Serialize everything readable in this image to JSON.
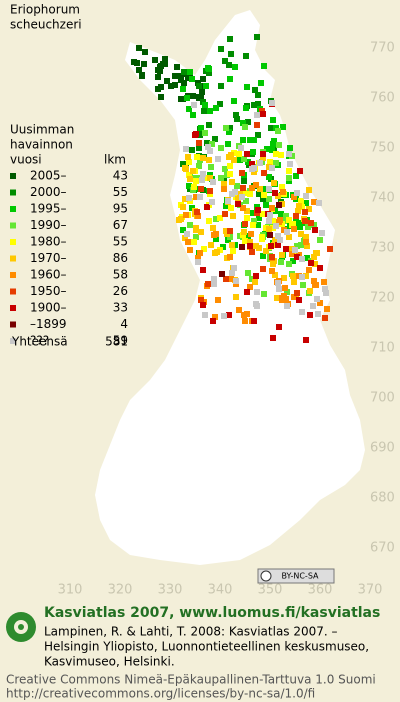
{
  "title": [
    "Eriophorum",
    "scheuchzeri"
  ],
  "legend": {
    "heading": [
      "Uusimman",
      "havainnon",
      "vuosi"
    ],
    "count_heading": "lkm",
    "rows": [
      {
        "label": "2005–",
        "count": 43,
        "color": "#005a00"
      },
      {
        "label": "2000–",
        "count": 55,
        "color": "#008c00"
      },
      {
        "label": "1995–",
        "count": 95,
        "color": "#00c800"
      },
      {
        "label": "1990–",
        "count": 67,
        "color": "#64e632"
      },
      {
        "label": "1980–",
        "count": 55,
        "color": "#ffff00"
      },
      {
        "label": "1970–",
        "count": 86,
        "color": "#ffc800"
      },
      {
        "label": "1960–",
        "count": 58,
        "color": "#ff8c00"
      },
      {
        "label": "1950–",
        "count": 26,
        "color": "#e63c00"
      },
      {
        "label": "1900–",
        "count": 33,
        "color": "#c80000"
      },
      {
        "label": "–1899",
        "count": 4,
        "color": "#780000"
      },
      {
        "label": "???",
        "count": 59,
        "color": "#c8c8c8"
      }
    ],
    "total_label": "Yhteensä",
    "total": 581
  },
  "grid": {
    "y_labels": [
      770,
      760,
      750,
      740,
      730,
      720,
      710,
      700,
      690,
      680,
      670
    ],
    "x_labels": [
      310,
      320,
      330,
      340,
      350,
      360,
      370
    ]
  },
  "license_badge": "BY-NC-SA",
  "footer": {
    "site": "Kasviatlas 2007, www.luomus.fi/kasviatlas",
    "citation": [
      "Lampinen, R. & Lahti, T. 2008: Kasviatlas 2007. –",
      "Helsingin Yliopisto, Luonnontieteellinen keskusmuseo,",
      "Kasvimuseo, Helsinki."
    ],
    "license": [
      "Creative Commons Nimeä-Epäkaupallinen-Tarttuva 1.0 Suomi",
      "http://creativecommons.org/licenses/by-nc-sa/1.0/fi"
    ]
  }
}
